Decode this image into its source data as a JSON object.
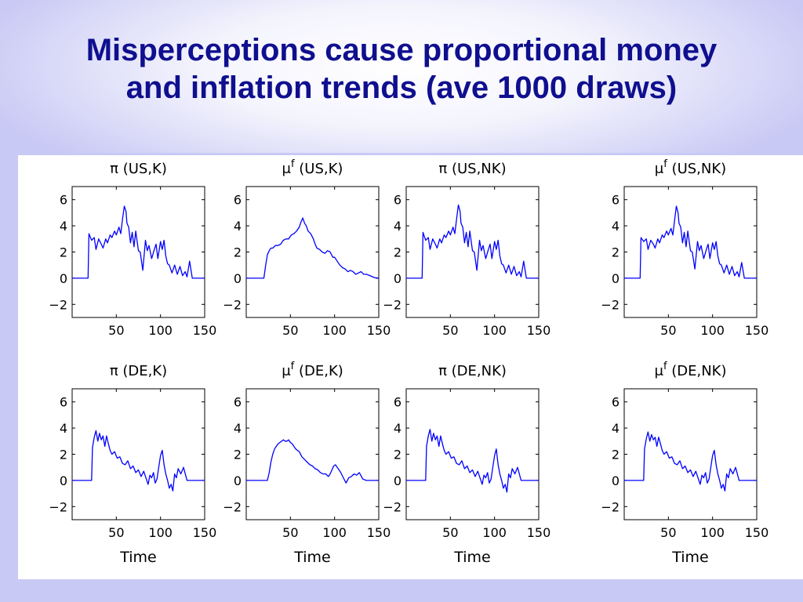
{
  "slide": {
    "title_line1": "Misperceptions cause proportional money",
    "title_line2": "and inflation trends (ave 1000 draws)"
  },
  "colors": {
    "background": "#c9c9f5",
    "title": "#0f0f8f",
    "series": "#0000ff",
    "panel": "#ffffff"
  },
  "chart_data": [
    {
      "type": "line",
      "title": "π (US,K)",
      "title_sym": "π",
      "title_sup": "",
      "title_rest": " (US,K)",
      "xlabel": "",
      "xlim": [
        0,
        150
      ],
      "ylim": [
        -3,
        7
      ],
      "xticks": [
        50,
        100,
        150
      ],
      "yticks": [
        6,
        4,
        2,
        0,
        -2
      ],
      "grid": false,
      "series": [
        {
          "x": [
            0,
            18,
            19,
            22,
            25,
            27,
            30,
            33,
            35,
            38,
            40,
            43,
            45,
            48,
            50,
            53,
            55,
            57,
            59,
            61,
            62,
            64,
            66,
            68,
            70,
            72,
            75,
            77,
            80,
            83,
            85,
            87,
            90,
            93,
            95,
            97,
            100,
            102,
            104,
            106,
            108,
            110,
            113,
            116,
            119,
            122,
            125,
            128,
            130,
            133,
            136,
            140,
            150
          ],
          "y": [
            0,
            0,
            3.4,
            2.9,
            3.1,
            2.2,
            3.0,
            2.6,
            2.3,
            3.0,
            2.7,
            3.3,
            3.1,
            3.6,
            3.3,
            3.9,
            3.4,
            4.5,
            5.5,
            5.1,
            4.2,
            3.9,
            2.7,
            3.5,
            2.4,
            3.6,
            2.1,
            2.0,
            0.6,
            2.9,
            2.1,
            2.5,
            1.5,
            2.2,
            2.6,
            1.5,
            2.8,
            2.2,
            2.9,
            1.7,
            1.1,
            1.0,
            0.4,
            1.0,
            0.3,
            0.9,
            0.2,
            0.5,
            0.1,
            1.3,
            0,
            0,
            0
          ]
        }
      ]
    },
    {
      "type": "line",
      "title": "μf (US,K)",
      "title_sym": "μ",
      "title_sup": "f",
      "title_rest": " (US,K)",
      "xlabel": "",
      "xlim": [
        0,
        150
      ],
      "ylim": [
        -3,
        7
      ],
      "xticks": [
        50,
        100,
        150
      ],
      "yticks": [
        6,
        4,
        2,
        0,
        -2
      ],
      "grid": false,
      "series": [
        {
          "x": [
            0,
            20,
            22,
            24,
            26,
            28,
            30,
            33,
            36,
            39,
            42,
            45,
            48,
            51,
            54,
            57,
            60,
            62,
            64,
            66,
            68,
            70,
            73,
            76,
            78,
            80,
            83,
            86,
            89,
            92,
            95,
            98,
            100,
            103,
            106,
            109,
            112,
            115,
            118,
            121,
            124,
            127,
            130,
            133,
            136,
            140,
            145,
            150
          ],
          "y": [
            0,
            0,
            1.0,
            1.8,
            2.1,
            2.3,
            2.3,
            2.5,
            2.5,
            2.6,
            2.9,
            3.0,
            3.0,
            3.3,
            3.4,
            3.6,
            3.9,
            4.3,
            4.6,
            4.2,
            4.0,
            3.6,
            3.4,
            3.0,
            2.6,
            2.3,
            2.2,
            2.0,
            1.9,
            2.1,
            2.0,
            1.6,
            1.6,
            1.3,
            1.0,
            0.8,
            0.7,
            0.5,
            0.6,
            0.5,
            0.3,
            0.4,
            0.5,
            0.3,
            0.3,
            0.2,
            0.05,
            0
          ]
        }
      ]
    },
    {
      "type": "line",
      "title": "π (US,NK)",
      "title_sym": "π",
      "title_sup": "",
      "title_rest": " (US,NK)",
      "xlabel": "",
      "xlim": [
        0,
        150
      ],
      "ylim": [
        -3,
        7
      ],
      "xticks": [
        50,
        100,
        150
      ],
      "yticks": [
        6,
        4,
        2,
        0,
        -2
      ],
      "grid": false,
      "series": [
        {
          "x": [
            0,
            18,
            19,
            22,
            25,
            27,
            30,
            33,
            35,
            38,
            40,
            43,
            45,
            48,
            50,
            53,
            55,
            57,
            59,
            61,
            62,
            64,
            66,
            68,
            70,
            72,
            75,
            77,
            80,
            83,
            85,
            87,
            90,
            93,
            95,
            97,
            100,
            102,
            104,
            106,
            108,
            110,
            113,
            116,
            119,
            122,
            125,
            128,
            130,
            133,
            136,
            140,
            150
          ],
          "y": [
            0,
            0,
            3.5,
            2.9,
            3.1,
            2.2,
            3.0,
            2.6,
            2.3,
            3.0,
            2.7,
            3.3,
            3.1,
            3.6,
            3.3,
            3.9,
            3.4,
            4.5,
            5.6,
            5.1,
            4.2,
            3.9,
            2.7,
            3.5,
            2.4,
            3.6,
            2.1,
            2.0,
            0.6,
            2.9,
            2.1,
            2.5,
            1.5,
            2.2,
            2.6,
            1.5,
            2.8,
            2.2,
            2.9,
            1.7,
            1.1,
            1.0,
            0.4,
            1.0,
            0.3,
            0.9,
            0.2,
            0.5,
            0.1,
            1.3,
            0,
            0,
            0
          ]
        }
      ]
    },
    {
      "type": "line",
      "title": "μf (US,NK)",
      "title_sym": "μ",
      "title_sup": "f",
      "title_rest": " (US,NK)",
      "xlabel": "",
      "xlim": [
        0,
        150
      ],
      "ylim": [
        -3,
        7
      ],
      "xticks": [
        50,
        100,
        150
      ],
      "yticks": [
        6,
        4,
        2,
        0,
        -2
      ],
      "grid": false,
      "series": [
        {
          "x": [
            0,
            18,
            19,
            22,
            25,
            27,
            30,
            33,
            35,
            38,
            40,
            43,
            45,
            48,
            50,
            53,
            55,
            57,
            59,
            61,
            62,
            64,
            66,
            68,
            70,
            72,
            75,
            77,
            80,
            83,
            85,
            87,
            90,
            93,
            95,
            97,
            100,
            102,
            104,
            106,
            108,
            110,
            113,
            116,
            119,
            122,
            125,
            128,
            130,
            133,
            136,
            140,
            150
          ],
          "y": [
            0,
            0,
            3.1,
            2.8,
            3.0,
            2.2,
            2.9,
            2.6,
            2.3,
            3.0,
            2.7,
            3.3,
            3.1,
            3.6,
            3.3,
            3.8,
            3.3,
            4.4,
            5.5,
            5.0,
            4.2,
            3.9,
            2.7,
            3.5,
            2.4,
            3.6,
            2.1,
            2.0,
            0.7,
            2.8,
            2.1,
            2.5,
            1.5,
            2.2,
            2.6,
            1.5,
            2.7,
            2.2,
            2.8,
            1.7,
            1.1,
            1.0,
            0.4,
            1.0,
            0.3,
            0.9,
            0.2,
            0.5,
            0.1,
            1.2,
            0,
            0,
            0
          ]
        }
      ]
    },
    {
      "type": "line",
      "title": "π (DE,K)",
      "title_sym": "π",
      "title_sup": "",
      "title_rest": " (DE,K)",
      "xlabel": "Time",
      "xlim": [
        0,
        150
      ],
      "ylim": [
        -3,
        7
      ],
      "xticks": [
        50,
        100,
        150
      ],
      "yticks": [
        6,
        4,
        2,
        0,
        -2
      ],
      "grid": false,
      "series": [
        {
          "x": [
            0,
            22,
            23,
            25,
            27,
            29,
            31,
            33,
            35,
            37,
            39,
            41,
            43,
            45,
            48,
            51,
            54,
            57,
            60,
            63,
            66,
            69,
            72,
            75,
            78,
            81,
            84,
            86,
            88,
            90,
            92,
            94,
            96,
            98,
            100,
            102,
            104,
            106,
            108,
            110,
            112,
            114,
            116,
            118,
            120,
            123,
            126,
            130,
            150
          ],
          "y": [
            0,
            0,
            2.5,
            3.3,
            3.8,
            3.0,
            3.6,
            3.1,
            3.4,
            2.6,
            3.4,
            2.8,
            2.3,
            2.0,
            2.2,
            1.7,
            1.8,
            1.3,
            1.2,
            1.5,
            0.9,
            1.1,
            0.6,
            0.8,
            0.3,
            0.7,
            0.1,
            -0.3,
            0.4,
            0.2,
            0.6,
            -0.2,
            0.1,
            1.0,
            1.9,
            2.3,
            1.2,
            0.5,
            0.0,
            -0.6,
            -0.3,
            -0.8,
            0.5,
            0.2,
            0.9,
            0.5,
            1.0,
            0,
            0
          ]
        }
      ]
    },
    {
      "type": "line",
      "title": "μf (DE,K)",
      "title_sym": "μ",
      "title_sup": "f",
      "title_rest": " (DE,K)",
      "xlabel": "Time",
      "xlim": [
        0,
        150
      ],
      "ylim": [
        -3,
        7
      ],
      "xticks": [
        50,
        100,
        150
      ],
      "yticks": [
        6,
        4,
        2,
        0,
        -2
      ],
      "grid": false,
      "series": [
        {
          "x": [
            0,
            24,
            26,
            28,
            30,
            32,
            34,
            36,
            38,
            40,
            42,
            44,
            46,
            48,
            50,
            52,
            54,
            56,
            58,
            60,
            63,
            66,
            69,
            72,
            75,
            78,
            81,
            84,
            87,
            90,
            93,
            95,
            97,
            99,
            101,
            103,
            105,
            107,
            110,
            113,
            116,
            119,
            122,
            125,
            128,
            132,
            136,
            150
          ],
          "y": [
            0,
            0,
            0.6,
            1.4,
            2.0,
            2.4,
            2.6,
            2.8,
            2.9,
            3.0,
            3.1,
            3.0,
            3.0,
            3.1,
            2.9,
            2.8,
            2.6,
            2.4,
            2.3,
            2.2,
            1.8,
            1.6,
            1.4,
            1.2,
            1.1,
            0.9,
            0.8,
            0.6,
            0.5,
            0.5,
            0.3,
            0.5,
            0.8,
            1.1,
            1.2,
            1.0,
            0.8,
            0.6,
            0.2,
            -0.2,
            0.2,
            0.3,
            0.5,
            0.4,
            0.6,
            0.1,
            0,
            0
          ]
        }
      ]
    },
    {
      "type": "line",
      "title": "π (DE,NK)",
      "title_sym": "π",
      "title_sup": "",
      "title_rest": " (DE,NK)",
      "xlabel": "Time",
      "xlim": [
        0,
        150
      ],
      "ylim": [
        -3,
        7
      ],
      "xticks": [
        50,
        100,
        150
      ],
      "yticks": [
        6,
        4,
        2,
        0,
        -2
      ],
      "grid": false,
      "series": [
        {
          "x": [
            0,
            22,
            23,
            25,
            27,
            29,
            31,
            33,
            35,
            37,
            39,
            41,
            43,
            45,
            48,
            51,
            54,
            57,
            60,
            63,
            66,
            69,
            72,
            75,
            78,
            81,
            84,
            86,
            88,
            90,
            92,
            94,
            96,
            98,
            100,
            102,
            104,
            106,
            108,
            110,
            112,
            114,
            116,
            118,
            120,
            123,
            126,
            130,
            150
          ],
          "y": [
            0,
            0,
            2.6,
            3.4,
            3.9,
            3.0,
            3.6,
            3.1,
            3.4,
            2.6,
            3.4,
            2.8,
            2.3,
            2.0,
            2.2,
            1.7,
            1.8,
            1.3,
            1.2,
            1.5,
            0.9,
            1.1,
            0.6,
            0.8,
            0.3,
            0.7,
            0.1,
            -0.3,
            0.4,
            0.2,
            0.6,
            -0.2,
            0.1,
            1.0,
            1.9,
            2.4,
            1.2,
            0.5,
            0.0,
            -0.6,
            -0.3,
            -0.9,
            0.5,
            0.2,
            0.9,
            0.5,
            1.0,
            0,
            0
          ]
        }
      ]
    },
    {
      "type": "line",
      "title": "μf (DE,NK)",
      "title_sym": "μ",
      "title_sup": "f",
      "title_rest": " (DE,NK)",
      "xlabel": "Time",
      "xlim": [
        0,
        150
      ],
      "ylim": [
        -3,
        7
      ],
      "xticks": [
        50,
        100,
        150
      ],
      "yticks": [
        6,
        4,
        2,
        0,
        -2
      ],
      "grid": false,
      "series": [
        {
          "x": [
            0,
            22,
            23,
            25,
            27,
            29,
            31,
            33,
            35,
            37,
            39,
            41,
            43,
            45,
            48,
            51,
            54,
            57,
            60,
            63,
            66,
            69,
            72,
            75,
            78,
            81,
            84,
            86,
            88,
            90,
            92,
            94,
            96,
            98,
            100,
            102,
            104,
            106,
            108,
            110,
            112,
            114,
            116,
            118,
            120,
            123,
            126,
            130,
            150
          ],
          "y": [
            0,
            0,
            2.4,
            3.2,
            3.7,
            3.0,
            3.5,
            3.1,
            3.3,
            2.6,
            3.3,
            2.8,
            2.3,
            2.0,
            2.2,
            1.7,
            1.8,
            1.3,
            1.2,
            1.5,
            0.9,
            1.1,
            0.6,
            0.8,
            0.3,
            0.7,
            0.1,
            -0.3,
            0.4,
            0.2,
            0.6,
            -0.2,
            0.1,
            1.0,
            1.9,
            2.3,
            1.2,
            0.5,
            0.0,
            -0.6,
            -0.3,
            -0.8,
            0.5,
            0.2,
            0.9,
            0.5,
            1.0,
            0,
            0
          ]
        }
      ]
    }
  ]
}
